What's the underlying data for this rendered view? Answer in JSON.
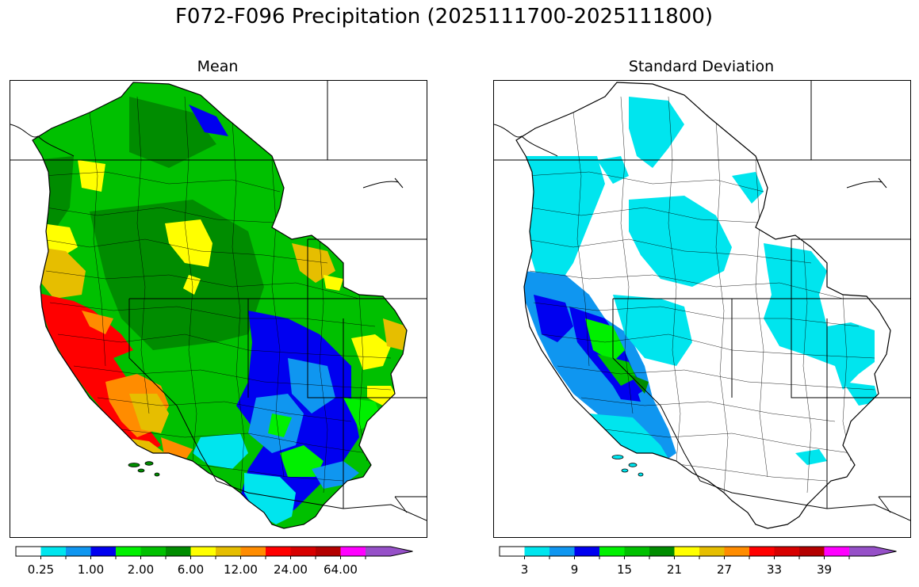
{
  "title": "F072-F096 Precipitation (2025111700-2025111800)",
  "panels": [
    {
      "id": "mean",
      "title": "Mean",
      "colorbar": {
        "colors": [
          "#ffffff",
          "#00e5ee",
          "#0f96f0",
          "#0000f0",
          "#00f000",
          "#00c000",
          "#008c00",
          "#ffff00",
          "#e6be00",
          "#ff8c00",
          "#ff0000",
          "#d70000",
          "#b40000",
          "#ff00ff",
          "#9650c8"
        ],
        "tick_labels": [
          "0.25",
          "1.00",
          "2.00",
          "6.00",
          "12.00",
          "24.00",
          "64.00"
        ],
        "extend": "max"
      }
    },
    {
      "id": "stddev",
      "title": "Standard Deviation",
      "colorbar": {
        "colors": [
          "#ffffff",
          "#00e5ee",
          "#0f96f0",
          "#0000f0",
          "#00f000",
          "#00c000",
          "#008c00",
          "#ffff00",
          "#e6be00",
          "#ff8c00",
          "#ff0000",
          "#d70000",
          "#b40000",
          "#ff00ff",
          "#9650c8"
        ],
        "tick_labels": [
          "3",
          "9",
          "15",
          "21",
          "27",
          "33",
          "39"
        ],
        "extend": "max"
      }
    }
  ]
}
